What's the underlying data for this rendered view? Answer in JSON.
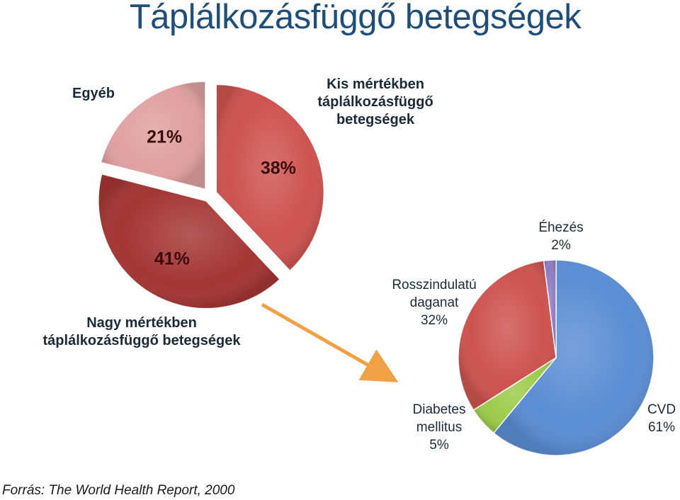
{
  "slide": {
    "title": "Táplálkozásfüggő betegségek",
    "source": "Forrás: The World Health Report, 2000"
  },
  "chart_data": [
    {
      "type": "pie",
      "exploded": true,
      "slices": [
        {
          "label": "Kis mértékben táplálkozásfüggő betegségek",
          "value": 38,
          "value_label": "38%",
          "color": "#CD5350"
        },
        {
          "label": "Nagy mértékben táplálkozásfüggő betegségek",
          "value": 41,
          "value_label": "41%",
          "color": "#A33534"
        },
        {
          "label": "Egyéb",
          "value": 21,
          "value_label": "21%",
          "color": "#DFA0A0"
        }
      ]
    },
    {
      "type": "pie",
      "slices": [
        {
          "label": "CVD",
          "value": 61,
          "value_label": "61%",
          "color": "#5B8DD3"
        },
        {
          "label": "Diabetes mellitus",
          "value": 5,
          "value_label": "5%",
          "color": "#9CCB4A"
        },
        {
          "label": "Rosszindulatú daganat",
          "value": 32,
          "value_label": "32%",
          "color": "#CD5350"
        },
        {
          "label": "Éhezés",
          "value": 2,
          "value_label": "2%",
          "color": "#8E7CC3"
        }
      ]
    }
  ],
  "labels": {
    "kis_line1": "Kis mértékben",
    "kis_line2": "táplálkozásfüggő",
    "kis_line3": "betegségek",
    "nagy_line1": "Nagy mértékben",
    "nagy_line2": "táplálkozásfüggő betegségek",
    "egyeb": "Egyéb",
    "rossz_line1": "Rosszindulatú",
    "rossz_line2": "daganat",
    "rossz_pct": "32%",
    "ehezes_line1": "Éhezés",
    "ehezes_pct": "2%",
    "diab_line1": "Diabetes",
    "diab_line2": "mellitus",
    "diab_pct": "5%",
    "cvd_line1": "CVD",
    "cvd_pct": "61%"
  },
  "arrow_color": "#F0A045"
}
